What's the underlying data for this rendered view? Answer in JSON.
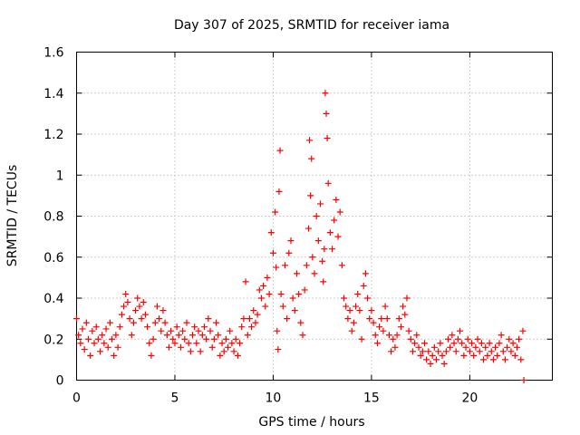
{
  "chart_data": {
    "type": "scatter",
    "title": "Day 307 of 2025, SRMTID for receiver iama",
    "xlabel": "GPS time / hours",
    "ylabel": "SRMTID / TECUs",
    "xlim": [
      0,
      24.2
    ],
    "ylim": [
      0,
      1.6
    ],
    "xticks": [
      0,
      5,
      10,
      15,
      20
    ],
    "xtick_labels": [
      "0",
      "5",
      "10",
      "15",
      "20"
    ],
    "yticks": [
      0,
      0.2,
      0.4,
      0.6,
      0.8,
      1.0,
      1.2,
      1.4,
      1.6
    ],
    "ytick_labels": [
      "0",
      "0.2",
      "0.4",
      "0.6",
      "0.8",
      "1",
      "1.2",
      "1.4",
      "1.6"
    ],
    "grid": true,
    "marker": "+",
    "color": "#ff0000",
    "series": [
      {
        "name": "SRMTID",
        "points": [
          [
            0.0,
            0.3
          ],
          [
            0.1,
            0.22
          ],
          [
            0.2,
            0.18
          ],
          [
            0.3,
            0.25
          ],
          [
            0.4,
            0.15
          ],
          [
            0.5,
            0.28
          ],
          [
            0.6,
            0.2
          ],
          [
            0.7,
            0.12
          ],
          [
            0.8,
            0.24
          ],
          [
            0.9,
            0.18
          ],
          [
            1.0,
            0.26
          ],
          [
            1.1,
            0.2
          ],
          [
            1.2,
            0.14
          ],
          [
            1.3,
            0.22
          ],
          [
            1.4,
            0.18
          ],
          [
            1.5,
            0.25
          ],
          [
            1.6,
            0.16
          ],
          [
            1.7,
            0.28
          ],
          [
            1.8,
            0.2
          ],
          [
            1.9,
            0.12
          ],
          [
            2.0,
            0.22
          ],
          [
            2.1,
            0.16
          ],
          [
            2.2,
            0.26
          ],
          [
            2.3,
            0.32
          ],
          [
            2.4,
            0.36
          ],
          [
            2.5,
            0.42
          ],
          [
            2.6,
            0.38
          ],
          [
            2.7,
            0.3
          ],
          [
            2.8,
            0.22
          ],
          [
            2.9,
            0.28
          ],
          [
            3.0,
            0.34
          ],
          [
            3.1,
            0.4
          ],
          [
            3.2,
            0.36
          ],
          [
            3.3,
            0.3
          ],
          [
            3.4,
            0.38
          ],
          [
            3.5,
            0.32
          ],
          [
            3.6,
            0.26
          ],
          [
            3.7,
            0.18
          ],
          [
            3.8,
            0.12
          ],
          [
            3.9,
            0.2
          ],
          [
            4.0,
            0.28
          ],
          [
            4.1,
            0.36
          ],
          [
            4.2,
            0.3
          ],
          [
            4.3,
            0.24
          ],
          [
            4.4,
            0.34
          ],
          [
            4.5,
            0.28
          ],
          [
            4.6,
            0.22
          ],
          [
            4.7,
            0.16
          ],
          [
            4.8,
            0.24
          ],
          [
            4.9,
            0.2
          ],
          [
            5.0,
            0.18
          ],
          [
            5.1,
            0.26
          ],
          [
            5.2,
            0.22
          ],
          [
            5.3,
            0.16
          ],
          [
            5.4,
            0.24
          ],
          [
            5.5,
            0.2
          ],
          [
            5.6,
            0.28
          ],
          [
            5.7,
            0.18
          ],
          [
            5.8,
            0.14
          ],
          [
            5.9,
            0.22
          ],
          [
            6.0,
            0.26
          ],
          [
            6.1,
            0.18
          ],
          [
            6.2,
            0.24
          ],
          [
            6.3,
            0.14
          ],
          [
            6.4,
            0.22
          ],
          [
            6.5,
            0.26
          ],
          [
            6.6,
            0.2
          ],
          [
            6.7,
            0.3
          ],
          [
            6.8,
            0.24
          ],
          [
            6.9,
            0.16
          ],
          [
            7.0,
            0.2
          ],
          [
            7.1,
            0.28
          ],
          [
            7.2,
            0.22
          ],
          [
            7.3,
            0.12
          ],
          [
            7.4,
            0.18
          ],
          [
            7.5,
            0.14
          ],
          [
            7.6,
            0.2
          ],
          [
            7.7,
            0.16
          ],
          [
            7.8,
            0.24
          ],
          [
            7.9,
            0.18
          ],
          [
            8.0,
            0.14
          ],
          [
            8.1,
            0.2
          ],
          [
            8.2,
            0.12
          ],
          [
            8.3,
            0.18
          ],
          [
            8.4,
            0.26
          ],
          [
            8.5,
            0.3
          ],
          [
            8.6,
            0.48
          ],
          [
            8.7,
            0.22
          ],
          [
            8.8,
            0.3
          ],
          [
            8.9,
            0.26
          ],
          [
            9.0,
            0.34
          ],
          [
            9.1,
            0.28
          ],
          [
            9.2,
            0.32
          ],
          [
            9.3,
            0.44
          ],
          [
            9.4,
            0.4
          ],
          [
            9.5,
            0.46
          ],
          [
            9.6,
            0.36
          ],
          [
            9.7,
            0.5
          ],
          [
            9.8,
            0.42
          ],
          [
            9.9,
            0.72
          ],
          [
            10.0,
            0.62
          ],
          [
            10.1,
            0.82
          ],
          [
            10.15,
            0.55
          ],
          [
            10.2,
            0.24
          ],
          [
            10.25,
            0.15
          ],
          [
            10.3,
            0.92
          ],
          [
            10.35,
            1.12
          ],
          [
            10.4,
            0.42
          ],
          [
            10.5,
            0.36
          ],
          [
            10.6,
            0.56
          ],
          [
            10.7,
            0.3
          ],
          [
            10.8,
            0.62
          ],
          [
            10.9,
            0.68
          ],
          [
            11.0,
            0.4
          ],
          [
            11.1,
            0.34
          ],
          [
            11.2,
            0.52
          ],
          [
            11.3,
            0.42
          ],
          [
            11.4,
            0.28
          ],
          [
            11.5,
            0.22
          ],
          [
            11.6,
            0.44
          ],
          [
            11.7,
            0.56
          ],
          [
            11.8,
            0.74
          ],
          [
            11.85,
            1.17
          ],
          [
            11.9,
            0.9
          ],
          [
            11.95,
            1.08
          ],
          [
            12.0,
            0.6
          ],
          [
            12.1,
            0.52
          ],
          [
            12.2,
            0.8
          ],
          [
            12.3,
            0.68
          ],
          [
            12.4,
            0.86
          ],
          [
            12.5,
            0.58
          ],
          [
            12.55,
            0.48
          ],
          [
            12.6,
            0.64
          ],
          [
            12.65,
            1.4
          ],
          [
            12.7,
            1.3
          ],
          [
            12.75,
            1.18
          ],
          [
            12.8,
            0.96
          ],
          [
            12.9,
            0.72
          ],
          [
            13.0,
            0.64
          ],
          [
            13.1,
            0.78
          ],
          [
            13.2,
            0.88
          ],
          [
            13.3,
            0.7
          ],
          [
            13.4,
            0.82
          ],
          [
            13.5,
            0.56
          ],
          [
            13.6,
            0.4
          ],
          [
            13.7,
            0.36
          ],
          [
            13.8,
            0.3
          ],
          [
            13.9,
            0.34
          ],
          [
            14.0,
            0.24
          ],
          [
            14.1,
            0.28
          ],
          [
            14.2,
            0.36
          ],
          [
            14.3,
            0.42
          ],
          [
            14.4,
            0.34
          ],
          [
            14.5,
            0.2
          ],
          [
            14.6,
            0.46
          ],
          [
            14.7,
            0.52
          ],
          [
            14.8,
            0.4
          ],
          [
            14.9,
            0.3
          ],
          [
            15.0,
            0.34
          ],
          [
            15.1,
            0.28
          ],
          [
            15.2,
            0.22
          ],
          [
            15.3,
            0.18
          ],
          [
            15.4,
            0.26
          ],
          [
            15.5,
            0.3
          ],
          [
            15.6,
            0.24
          ],
          [
            15.7,
            0.36
          ],
          [
            15.8,
            0.3
          ],
          [
            15.9,
            0.22
          ],
          [
            16.0,
            0.14
          ],
          [
            16.1,
            0.2
          ],
          [
            16.2,
            0.16
          ],
          [
            16.3,
            0.22
          ],
          [
            16.4,
            0.3
          ],
          [
            16.5,
            0.26
          ],
          [
            16.6,
            0.36
          ],
          [
            16.7,
            0.32
          ],
          [
            16.8,
            0.4
          ],
          [
            16.9,
            0.24
          ],
          [
            17.0,
            0.2
          ],
          [
            17.1,
            0.14
          ],
          [
            17.2,
            0.18
          ],
          [
            17.3,
            0.22
          ],
          [
            17.4,
            0.16
          ],
          [
            17.5,
            0.12
          ],
          [
            17.6,
            0.14
          ],
          [
            17.7,
            0.18
          ],
          [
            17.8,
            0.1
          ],
          [
            17.9,
            0.14
          ],
          [
            18.0,
            0.08
          ],
          [
            18.1,
            0.12
          ],
          [
            18.2,
            0.16
          ],
          [
            18.3,
            0.1
          ],
          [
            18.4,
            0.14
          ],
          [
            18.5,
            0.18
          ],
          [
            18.6,
            0.12
          ],
          [
            18.7,
            0.08
          ],
          [
            18.8,
            0.14
          ],
          [
            18.9,
            0.2
          ],
          [
            19.0,
            0.16
          ],
          [
            19.1,
            0.22
          ],
          [
            19.2,
            0.18
          ],
          [
            19.3,
            0.14
          ],
          [
            19.4,
            0.2
          ],
          [
            19.5,
            0.24
          ],
          [
            19.6,
            0.18
          ],
          [
            19.7,
            0.12
          ],
          [
            19.8,
            0.16
          ],
          [
            19.9,
            0.2
          ],
          [
            20.0,
            0.14
          ],
          [
            20.1,
            0.18
          ],
          [
            20.2,
            0.12
          ],
          [
            20.3,
            0.16
          ],
          [
            20.4,
            0.2
          ],
          [
            20.5,
            0.14
          ],
          [
            20.6,
            0.18
          ],
          [
            20.7,
            0.1
          ],
          [
            20.8,
            0.16
          ],
          [
            20.9,
            0.12
          ],
          [
            21.0,
            0.18
          ],
          [
            21.1,
            0.14
          ],
          [
            21.2,
            0.1
          ],
          [
            21.3,
            0.16
          ],
          [
            21.4,
            0.12
          ],
          [
            21.5,
            0.18
          ],
          [
            21.6,
            0.22
          ],
          [
            21.7,
            0.14
          ],
          [
            21.8,
            0.1
          ],
          [
            21.9,
            0.16
          ],
          [
            22.0,
            0.2
          ],
          [
            22.1,
            0.14
          ],
          [
            22.2,
            0.18
          ],
          [
            22.3,
            0.12
          ],
          [
            22.4,
            0.16
          ],
          [
            22.5,
            0.2
          ],
          [
            22.6,
            0.1
          ],
          [
            22.7,
            0.24
          ],
          [
            22.75,
            0.0
          ]
        ]
      }
    ]
  }
}
